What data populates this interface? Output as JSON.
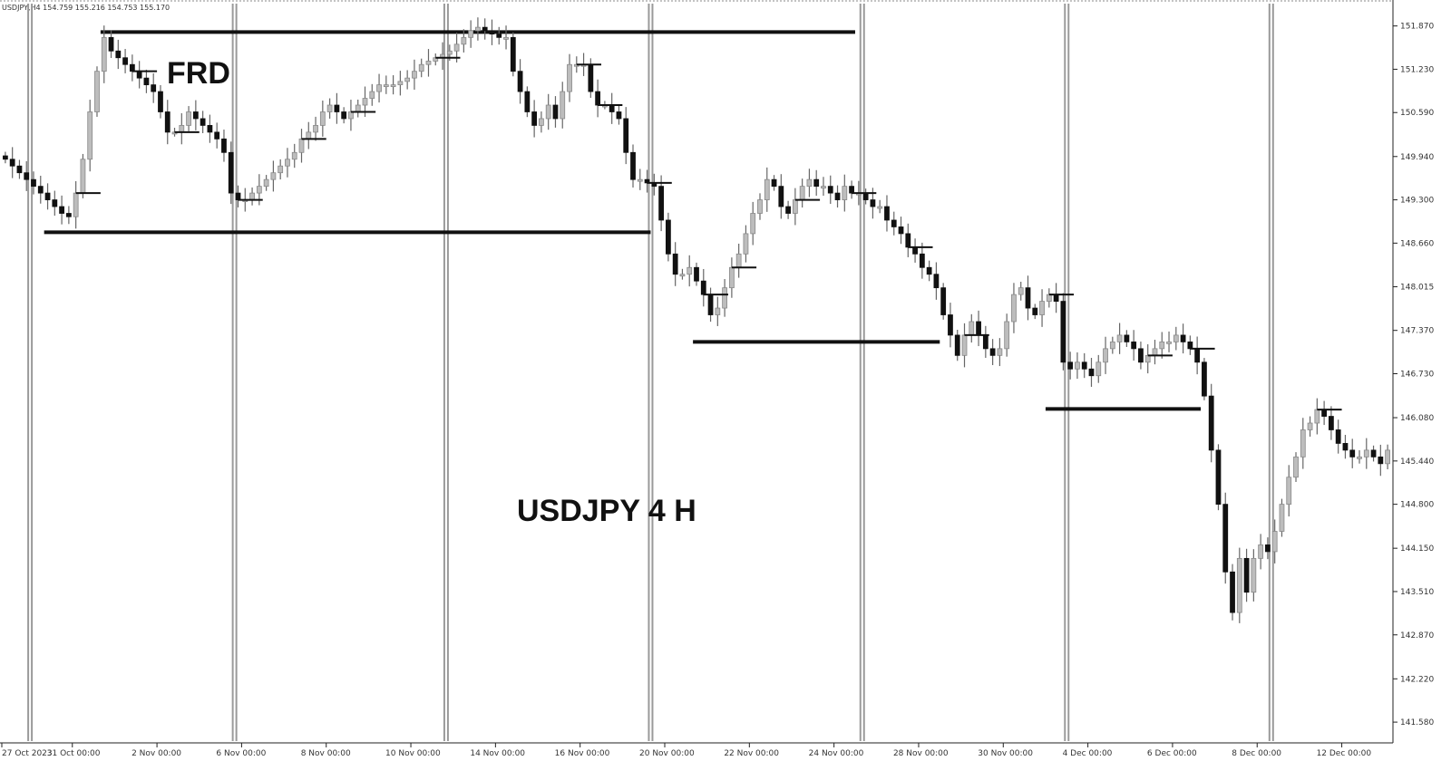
{
  "chart_data": {
    "type": "candlestick",
    "header": "USDJPY,H4  154.759 155.216 154.753 155.170",
    "title": "USDJPY 4 H",
    "annotation": "FRD",
    "grid": false,
    "ylim": [
      141.3,
      152.2
    ],
    "y_ticks": [
      {
        "label": "151.870",
        "value": 151.87
      },
      {
        "label": "151.230",
        "value": 151.23
      },
      {
        "label": "150.590",
        "value": 150.59
      },
      {
        "label": "149.940",
        "value": 149.94
      },
      {
        "label": "149.300",
        "value": 149.3
      },
      {
        "label": "148.660",
        "value": 148.66
      },
      {
        "label": "148.015",
        "value": 148.015
      },
      {
        "label": "147.370",
        "value": 147.37
      },
      {
        "label": "146.730",
        "value": 146.73
      },
      {
        "label": "146.080",
        "value": 146.08
      },
      {
        "label": "145.440",
        "value": 145.44
      },
      {
        "label": "144.800",
        "value": 144.8
      },
      {
        "label": "144.150",
        "value": 144.15
      },
      {
        "label": "143.510",
        "value": 143.51
      },
      {
        "label": "142.870",
        "value": 142.87
      },
      {
        "label": "142.220",
        "value": 142.22
      },
      {
        "label": "141.580",
        "value": 141.58
      }
    ],
    "x_ticks": [
      {
        "label": "27 Oct 2023",
        "bar": 0
      },
      {
        "label": "31 Oct 00:00",
        "bar": 10
      },
      {
        "label": "2 Nov 00:00",
        "bar": 22
      },
      {
        "label": "6 Nov 00:00",
        "bar": 34
      },
      {
        "label": "8 Nov 00:00",
        "bar": 46
      },
      {
        "label": "10 Nov 00:00",
        "bar": 58
      },
      {
        "label": "14 Nov 00:00",
        "bar": 70
      },
      {
        "label": "16 Nov 00:00",
        "bar": 82
      },
      {
        "label": "20 Nov 00:00",
        "bar": 94
      },
      {
        "label": "22 Nov 00:00",
        "bar": 106
      },
      {
        "label": "24 Nov 00:00",
        "bar": 118
      },
      {
        "label": "28 Nov 00:00",
        "bar": 130
      },
      {
        "label": "30 Nov 00:00",
        "bar": 142
      },
      {
        "label": "4 Dec 00:00",
        "bar": 154
      },
      {
        "label": "6 Dec 00:00",
        "bar": 166
      },
      {
        "label": "8 Dec 00:00",
        "bar": 178
      },
      {
        "label": "12 Dec 00:00",
        "bar": 190
      }
    ],
    "week_separators": [
      4,
      33,
      63,
      92,
      122,
      151,
      180
    ],
    "levels": [
      {
        "price": 151.78,
        "from_bar": 14,
        "to_bar": 121
      },
      {
        "price": 148.82,
        "from_bar": 6,
        "to_bar": 92
      },
      {
        "price": 147.2,
        "from_bar": 98,
        "to_bar": 133
      },
      {
        "price": 146.21,
        "from_bar": 148,
        "to_bar": 170
      }
    ],
    "closes": [
      149.9,
      149.8,
      149.7,
      149.6,
      149.5,
      149.4,
      149.3,
      149.2,
      149.1,
      149.05,
      149.4,
      149.9,
      150.6,
      151.2,
      151.7,
      151.5,
      151.4,
      151.3,
      151.2,
      151.1,
      151.0,
      150.9,
      150.6,
      150.3,
      150.3,
      150.4,
      150.6,
      150.5,
      150.4,
      150.3,
      150.2,
      150.0,
      149.4,
      149.3,
      149.3,
      149.4,
      149.5,
      149.6,
      149.7,
      149.8,
      149.9,
      150.0,
      150.2,
      150.3,
      150.4,
      150.6,
      150.7,
      150.6,
      150.5,
      150.6,
      150.7,
      150.8,
      150.9,
      151.0,
      151.0,
      151.0,
      151.05,
      151.1,
      151.2,
      151.3,
      151.35,
      151.4,
      151.45,
      151.5,
      151.6,
      151.7,
      151.8,
      151.85,
      151.8,
      151.75,
      151.7,
      151.7,
      151.2,
      150.9,
      150.6,
      150.4,
      150.5,
      150.7,
      150.5,
      150.9,
      151.3,
      151.3,
      151.3,
      150.9,
      150.7,
      150.7,
      150.6,
      150.5,
      150.0,
      149.6,
      149.6,
      149.55,
      149.5,
      149.0,
      148.5,
      148.2,
      148.2,
      148.3,
      148.1,
      147.9,
      147.6,
      147.7,
      148.0,
      148.3,
      148.5,
      148.8,
      149.1,
      149.3,
      149.6,
      149.5,
      149.2,
      149.1,
      149.3,
      149.5,
      149.6,
      149.5,
      149.5,
      149.4,
      149.3,
      149.5,
      149.4,
      149.4,
      149.3,
      149.2,
      149.2,
      149.0,
      148.9,
      148.8,
      148.6,
      148.5,
      148.3,
      148.2,
      148.0,
      147.6,
      147.3,
      147.0,
      147.3,
      147.5,
      147.3,
      147.1,
      147.0,
      147.1,
      147.5,
      147.9,
      148.0,
      147.7,
      147.6,
      147.8,
      147.9,
      147.8,
      146.9,
      146.8,
      146.9,
      146.8,
      146.7,
      146.9,
      147.1,
      147.2,
      147.3,
      147.2,
      147.1,
      146.9,
      147.0,
      147.1,
      147.2,
      147.2,
      147.3,
      147.2,
      147.1,
      146.9,
      146.4,
      145.6,
      144.8,
      143.8,
      143.2,
      144.0,
      143.5,
      144.0,
      144.2,
      144.1,
      144.4,
      144.8,
      145.2,
      145.5,
      145.9,
      146.0,
      146.2,
      146.1,
      145.9,
      145.7,
      145.6,
      145.5,
      145.5,
      145.6,
      145.5,
      145.4,
      145.6
    ]
  }
}
